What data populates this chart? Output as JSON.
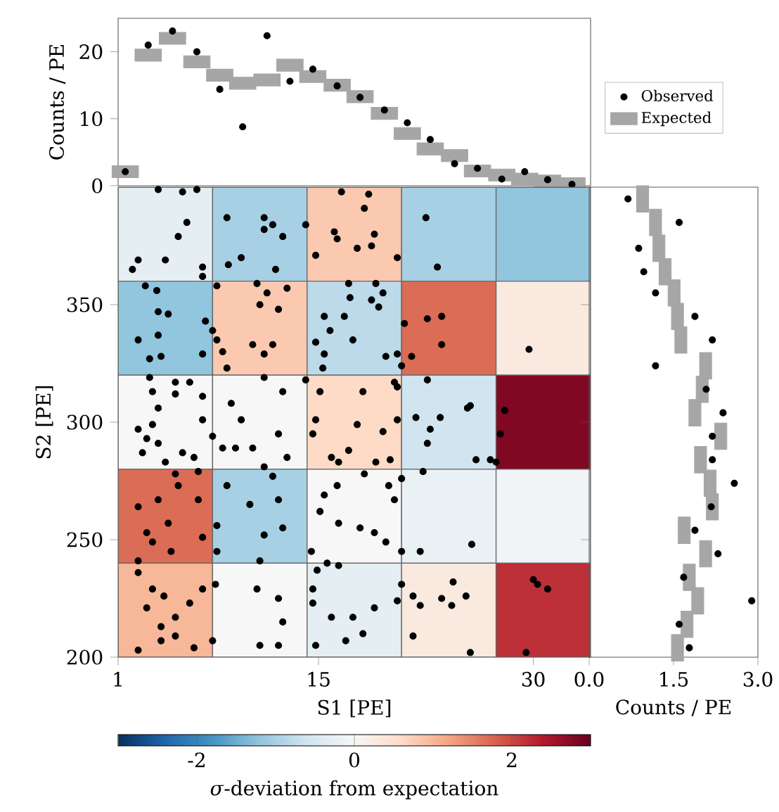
{
  "chart_data": [
    {
      "type": "scatter",
      "ylabel": "Counts / PE",
      "xlim": [
        1,
        34
      ],
      "ylim": [
        0,
        25
      ],
      "yticks": [
        0,
        10,
        20
      ],
      "tick_labels": "y",
      "legend": "right",
      "series": [
        {
          "name": "Observed",
          "color": "#000000",
          "marker": "circle",
          "x": [
            1.5,
            3.1,
            4.8,
            6.5,
            8.1,
            9.7,
            11.4,
            13.0,
            14.6,
            16.3,
            17.9,
            19.6,
            21.2,
            22.8,
            24.5,
            26.1,
            27.8,
            29.4,
            31.0,
            32.7
          ],
          "values": [
            2.1,
            21.0,
            23.1,
            20.0,
            14.4,
            8.8,
            22.4,
            15.6,
            17.4,
            14.9,
            13.2,
            11.3,
            9.4,
            6.9,
            3.3,
            2.6,
            1.0,
            2.1,
            0.9,
            0.2
          ]
        },
        {
          "name": "Expected",
          "color": "#a6a6a6",
          "marker": "square",
          "x": [
            1.5,
            3.1,
            4.8,
            6.5,
            8.1,
            9.7,
            11.4,
            13.0,
            14.6,
            16.3,
            17.9,
            19.6,
            21.2,
            22.8,
            24.5,
            26.1,
            27.8,
            29.4,
            31.0,
            32.7
          ],
          "values": [
            2.1,
            19.5,
            22.0,
            18.5,
            16.5,
            15.3,
            15.8,
            18.0,
            16.3,
            15.0,
            13.3,
            10.8,
            7.8,
            5.5,
            4.5,
            2.2,
            1.6,
            1.0,
            0.7,
            0.3
          ]
        }
      ]
    },
    {
      "type": "heatmap",
      "categories": [
        null,
        null,
        null,
        null,
        null
      ],
      "y_categories": [
        null,
        null,
        null,
        null,
        null
      ],
      "tick_labels": false,
      "clim": [
        -3,
        3
      ],
      "cticks": [
        -2,
        0,
        2
      ],
      "clabel": "*σ*-deviation from expectation",
      "cells": [
        [
          -0.3,
          -1.0,
          0.8,
          -1.0,
          -1.2
        ],
        [
          -1.2,
          0.8,
          -0.8,
          1.7,
          0.3
        ],
        [
          0.0,
          0.0,
          0.6,
          -0.6,
          2.8
        ],
        [
          1.7,
          -1.0,
          0.0,
          -0.2,
          -0.1
        ],
        [
          1.0,
          0.0,
          -0.3,
          0.3,
          2.2
        ]
      ]
    },
    {
      "type": "scatter",
      "xlabel": "S1 [PE]",
      "ylabel": "S2 [PE]",
      "xlim": [
        1,
        34
      ],
      "ylim": [
        200,
        400
      ],
      "xticks": [
        1,
        15,
        30
      ],
      "yticks": [
        200,
        250,
        300,
        350
      ],
      "color": "#000000",
      "marker": "circle",
      "x": [
        3.8,
        5.5,
        6.5,
        5.8,
        5.2,
        4.3,
        2.0,
        2.4,
        2.9,
        3.7,
        3.8,
        4.5,
        8.6,
        6.9,
        6.9,
        7.9,
        8.7,
        9.6,
        11.2,
        11.2,
        11.8,
        12.5,
        12.0,
        10.7,
        11.4,
        10.9,
        12.2,
        12.8,
        2.4,
        3.8,
        4.0,
        3.2,
        3.2,
        3.4,
        5.0,
        5.0,
        3.8,
        7.1,
        7.6,
        7.9,
        8.3,
        6.9,
        8.6,
        6.0,
        6.9,
        8.9,
        10.4,
        11.2,
        11.8,
        11.2,
        12.5,
        2.4,
        3.4,
        3.0,
        2.7,
        3.8,
        4.3,
        5.0,
        5.5,
        6.9,
        7.6,
        6.3,
        8.3,
        6.6,
        9.2,
        9.6,
        10.4,
        12.2,
        11.2,
        11.8,
        12.8,
        2.4,
        3.8,
        4.5,
        3.0,
        3.4,
        2.4,
        4.7,
        5.2,
        6.6,
        7.9,
        6.9,
        7.9,
        8.6,
        10.2,
        11.2,
        12.2,
        12.5,
        10.9,
        2.4,
        3.4,
        4.2,
        3.0,
        4.0,
        5.0,
        5.0,
        2.4,
        4.0,
        6.0,
        6.9,
        6.3,
        7.6,
        7.8,
        10.7,
        12.2,
        10.9,
        12.5,
        12.2,
        16.6,
        18.5,
        18.2,
        14.1,
        16.1,
        16.3,
        14.8,
        17.7,
        18.9,
        18.7,
        17.1,
        17.2,
        19.0,
        19.5,
        18.7,
        19.2,
        22.5,
        20.5,
        23.3,
        15.4,
        16.8,
        15.8,
        14.8,
        17.4,
        15.4,
        15.3,
        14.1,
        15.1,
        18.1,
        21.0,
        22.6,
        23.6,
        23.6,
        19.7,
        20.5,
        21.5,
        20.8,
        20.3,
        20.5,
        22.6,
        14.8,
        14.6,
        17.7,
        17.1,
        15.9,
        16.4,
        18.2,
        19.5,
        20.5,
        21.8,
        23.5,
        22.8,
        22.6,
        19.0,
        20.0,
        22.3,
        25.6,
        27.0,
        16.3,
        15.4,
        15.1,
        16.4,
        17.9,
        18.9,
        19.9,
        20.8,
        20.3,
        19.7,
        20.8,
        22.1,
        25.7,
        14.5,
        15.6,
        14.9,
        16.4,
        14.6,
        14.6,
        15.9,
        17.4,
        18.1,
        16.9,
        14.8,
        18.9,
        20.8,
        20.5,
        21.6,
        22.1,
        23.6,
        24.4,
        24.3,
        25.3,
        21.6,
        25.6,
        29.7,
        25.4,
        28.0,
        27.7,
        26.0,
        27.4,
        30.0,
        31.0,
        30.3,
        29.5
      ],
      "values": [
        399,
        398,
        399,
        385,
        379,
        369,
        365,
        369,
        358,
        356,
        347,
        346,
        387,
        366,
        362,
        358,
        367,
        370,
        387,
        382,
        384,
        379,
        365,
        359,
        355,
        350,
        348,
        357,
        335,
        337,
        328,
        327,
        319,
        313,
        317,
        312,
        306,
        343,
        339,
        335,
        330,
        329,
        323,
        317,
        311,
        308,
        333,
        329,
        333,
        319,
        313,
        297,
        299,
        293,
        287,
        291,
        283,
        278,
        287,
        301,
        294,
        285,
        289,
        279,
        289,
        301,
        289,
        295,
        281,
        277,
        285,
        264,
        267,
        257,
        253,
        249,
        241,
        245,
        273,
        267,
        256,
        251,
        245,
        273,
        265,
        252,
        267,
        255,
        241,
        236,
        229,
        226,
        221,
        213,
        209,
        217,
        203,
        207,
        223,
        229,
        204,
        207,
        231,
        229,
        225,
        205,
        215,
        205,
        398,
        397,
        391,
        384,
        381,
        378,
        371,
        374,
        380,
        375,
        359,
        353,
        359,
        355,
        352,
        349,
        387,
        370,
        366,
        345,
        345,
        339,
        334,
        335,
        329,
        323,
        318,
        313,
        313,
        342,
        344,
        345,
        333,
        328,
        329,
        328,
        324,
        317,
        315,
        318,
        301,
        295,
        299,
        288,
        285,
        283,
        278,
        296,
        301,
        302,
        302,
        297,
        291,
        283,
        284,
        279,
        307,
        284,
        273,
        269,
        262,
        257,
        255,
        253,
        273,
        276,
        267,
        249,
        245,
        245,
        248,
        245,
        240,
        237,
        239,
        229,
        223,
        217,
        217,
        210,
        207,
        205,
        221,
        231,
        224,
        226,
        222,
        225,
        232,
        222,
        226,
        209,
        202,
        331,
        306,
        305,
        295,
        284,
        283,
        233,
        229,
        231,
        202
      ]
    },
    {
      "type": "scatter",
      "xlabel": "Counts / PE",
      "xlim": [
        0,
        3
      ],
      "ylim": [
        200,
        400
      ],
      "xticks": [
        {
          "value": 0,
          "label": "0.0"
        },
        {
          "value": 1.5,
          "label": "1.5"
        },
        {
          "value": 3,
          "label": "3.0"
        }
      ],
      "yticks": [
        {
          "value": 250,
          "label": null
        },
        {
          "value": 300,
          "label": null
        },
        {
          "value": 350,
          "label": null
        }
      ],
      "tick_labels": "x",
      "series": [
        {
          "color": "#000000",
          "marker": "circle",
          "x": [
            0.69,
            1.6,
            0.88,
            0.97,
            1.18,
            1.88,
            2.19,
            1.18,
            2.08,
            2.38,
            2.19,
            2.19,
            2.58,
            2.17,
            1.88,
            2.29,
            1.68,
            2.89,
            1.6,
            1.78
          ],
          "values": [
            395,
            385,
            374,
            364,
            355,
            345,
            335,
            324,
            314,
            304,
            294,
            284,
            274,
            264,
            254,
            244,
            234,
            224,
            214,
            204
          ]
        },
        {
          "color": "#a6a6a6",
          "marker": "square",
          "x": [
            0.95,
            1.18,
            1.24,
            1.35,
            1.51,
            1.57,
            1.63,
            2.07,
            2.01,
            1.88,
            2.34,
            1.98,
            2.15,
            2.19,
            1.69,
            2.07,
            1.78,
            1.93,
            1.74,
            1.57
          ],
          "values": [
            395,
            385,
            374,
            364,
            355,
            345,
            335,
            324,
            314,
            304,
            294,
            284,
            274,
            264,
            254,
            244,
            234,
            224,
            214,
            204
          ]
        }
      ]
    }
  ]
}
